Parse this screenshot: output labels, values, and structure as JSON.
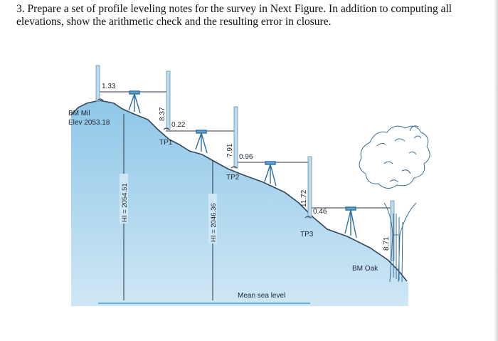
{
  "question": {
    "text": "3. Prepare a set of profile leveling notes for the survey in Next Figure. In addition to computing all elevations, show the arithmetic check and the resulting error in closure."
  },
  "figure": {
    "readings": {
      "bs1": "1.33",
      "fs1": "8.37",
      "bs2": "0.22",
      "fs2": "7.91",
      "bs3": "0.96",
      "fs3": "11.72",
      "bs4": "0.46",
      "fs4": "8.71"
    },
    "labels": {
      "bm_mil_name": "BM Mil",
      "bm_mil_elev": "Elev 2053.18",
      "tp1": "TP1",
      "tp2": "TP2",
      "tp3": "TP3",
      "bm_oak": "BM Oak",
      "hi1": "HI = 2054.51",
      "hi2": "HI = 2046.36",
      "msl": "Mean sea level"
    },
    "colors": {
      "ground": "#8ec6e6",
      "ground_line": "#33475c",
      "rod": "#bcdcf0",
      "instrument": "#3f8fc6"
    }
  }
}
